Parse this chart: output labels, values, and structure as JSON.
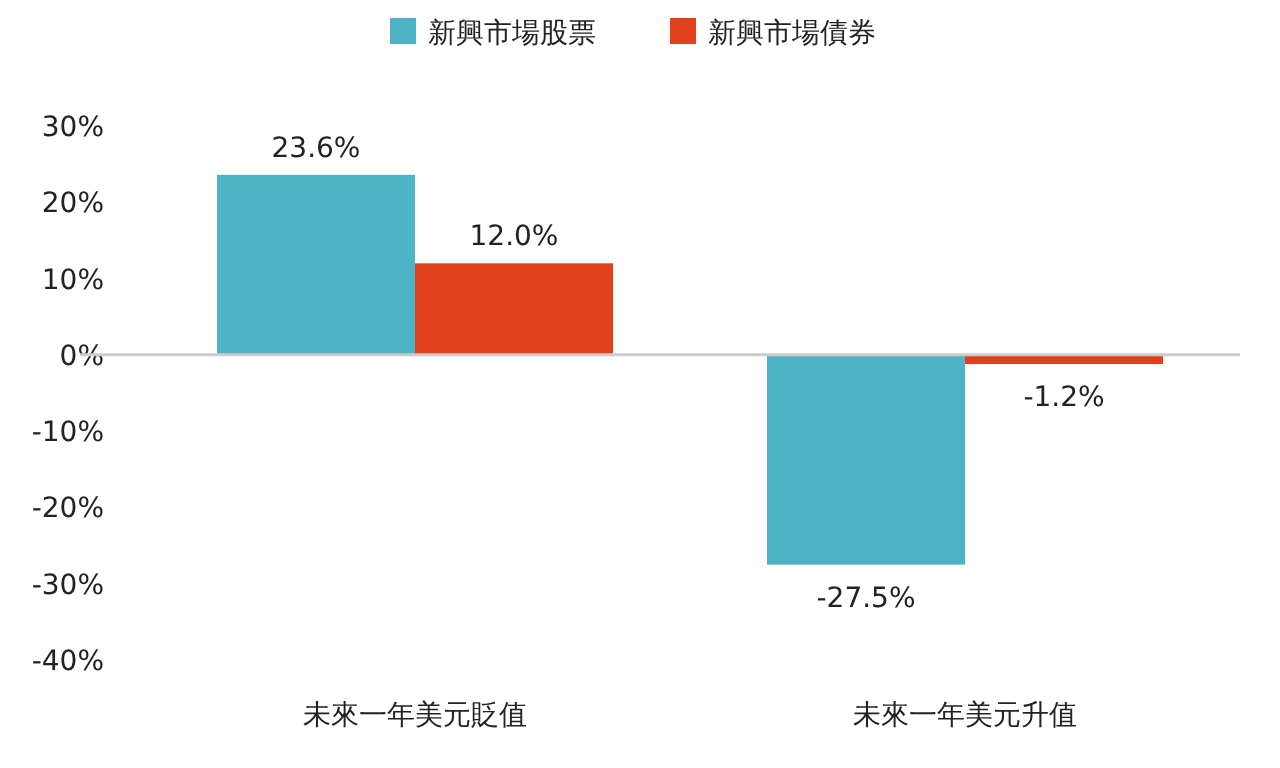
{
  "chart_data": {
    "type": "bar",
    "categories": [
      "未來一年美元貶值",
      "未來一年美元升值"
    ],
    "series": [
      {
        "name": "新興市場股票",
        "color": "#4fb3c8",
        "values": [
          23.6,
          -27.5
        ],
        "value_labels": [
          "23.6%",
          "-27.5%"
        ]
      },
      {
        "name": "新興市場債券",
        "color": "#e0401c",
        "values": [
          12.0,
          -1.2
        ],
        "value_labels": [
          "12.0%",
          "-1.2%"
        ]
      }
    ],
    "ylim": [
      -40,
      30
    ],
    "yticks": [
      {
        "value": 30,
        "label": "30%"
      },
      {
        "value": 20,
        "label": "20%"
      },
      {
        "value": 10,
        "label": "10%"
      },
      {
        "value": 0,
        "label": "0%"
      },
      {
        "value": -10,
        "label": "-10%"
      },
      {
        "value": -20,
        "label": "-20%"
      },
      {
        "value": -30,
        "label": "-30%"
      },
      {
        "value": -40,
        "label": "-40%"
      }
    ],
    "legend": "top"
  }
}
